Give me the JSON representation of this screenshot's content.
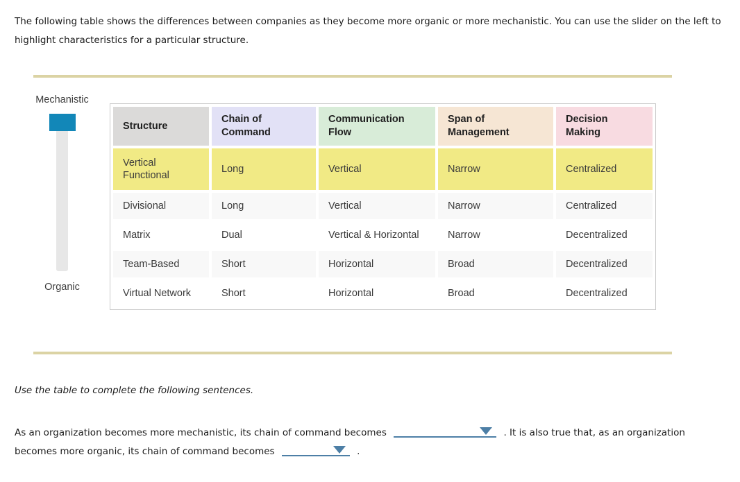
{
  "intro": {
    "text": "The following table shows the differences between companies as they become more organic or more mechanistic. You can use the slider on the left to highlight characteristics for a particular structure."
  },
  "slider": {
    "top_label": "Mechanistic",
    "bottom_label": "Organic",
    "handle_position": "top"
  },
  "table": {
    "columns": [
      {
        "label": "Structure",
        "color": "#dbdad9"
      },
      {
        "label": "Chain of Command",
        "color": "#e2e1f6"
      },
      {
        "label": "Communication Flow",
        "color": "#d8ecd8"
      },
      {
        "label": "Span of Management",
        "color": "#f6e6d4"
      },
      {
        "label": "Decision Making",
        "color": "#f8dbe1"
      }
    ],
    "rows": [
      {
        "highlighted": true,
        "cells": [
          "Vertical Functional",
          "Long",
          "Vertical",
          "Narrow",
          "Centralized"
        ]
      },
      {
        "highlighted": false,
        "cells": [
          "Divisional",
          "Long",
          "Vertical",
          "Narrow",
          "Centralized"
        ]
      },
      {
        "highlighted": false,
        "cells": [
          "Matrix",
          "Dual",
          "Vertical & Horizontal",
          "Narrow",
          "Decentralized"
        ]
      },
      {
        "highlighted": false,
        "cells": [
          "Team-Based",
          "Short",
          "Horizontal",
          "Broad",
          "Decentralized"
        ]
      },
      {
        "highlighted": false,
        "cells": [
          "Virtual Network",
          "Short",
          "Horizontal",
          "Broad",
          "Decentralized"
        ]
      }
    ],
    "highlight_color": "#f1ea85"
  },
  "instruction": {
    "text": "Use the table to complete the following sentences."
  },
  "sentence": {
    "part1": "As an organization becomes more mechanistic, its chain of command becomes",
    "dropdown1_value": "",
    "part2": ". It is also true that, as an organization becomes more organic, its chain of command becomes",
    "dropdown2_value": "",
    "part3": "."
  },
  "colors": {
    "divider": "#dbd3a4",
    "slider_handle": "#1287b8",
    "dropdown_accent": "#4d7fa6",
    "highlight": "#f1ea85"
  }
}
